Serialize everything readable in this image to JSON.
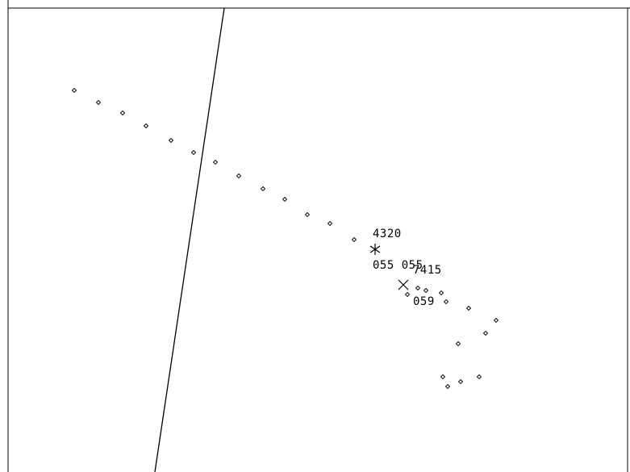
{
  "colors": {
    "background": "#ffffff",
    "foreground": "#000000"
  },
  "targets": [
    {
      "id": "4320",
      "symbol": "asterisk",
      "line1": "4320",
      "line2": "055 055"
    },
    {
      "id": "7415",
      "symbol": "x-cross",
      "line1": "7415",
      "line2": "059"
    }
  ]
}
